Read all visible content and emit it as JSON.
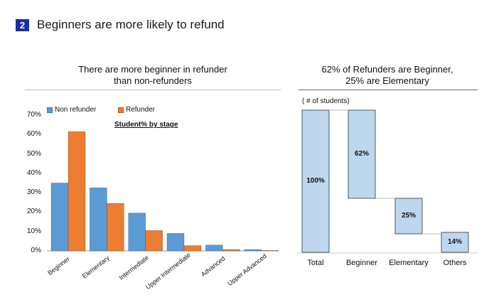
{
  "page": {
    "badge": "2",
    "heading": "Beginners are more likely to refund"
  },
  "colors": {
    "badge": "#1a2f9e",
    "non_refunder": "#5b9bd5",
    "refunder": "#ed7d31",
    "waterfall_fill": "#bdd7ee",
    "waterfall_stroke": "#333333"
  },
  "chart_data": [
    {
      "type": "bar",
      "title": "There are more beginner in refunder than non-refunders",
      "title_lines": [
        "There are more beginner in refunder",
        "than non-refunders"
      ],
      "subtitle": "Student% by stage",
      "categories": [
        "Beginner",
        "Elementary",
        "Intermediate",
        "Upper Intermediate",
        "Advanced",
        "Upper Advanced"
      ],
      "series": [
        {
          "name": "Non refunder",
          "values": [
            35,
            32.5,
            19.5,
            9,
            3,
            0.7
          ]
        },
        {
          "name": "Refunder",
          "values": [
            61.5,
            24.5,
            10.5,
            2.7,
            0.7,
            0.2
          ]
        }
      ],
      "yticks": [
        "0%",
        "10%",
        "20%",
        "30%",
        "40%",
        "50%",
        "60%",
        "70%"
      ],
      "ylim": [
        0,
        70
      ],
      "legend_position": "top-left"
    },
    {
      "type": "waterfall",
      "title": "62% of Refunders are Beginner, 25% are Elementary",
      "title_lines": [
        "62% of Refunders are Beginner,",
        "25% are Elementary"
      ],
      "units_label": "( # of students)",
      "categories": [
        "Total",
        "Beginner",
        "Elementary",
        "Others"
      ],
      "values": [
        100,
        62,
        25,
        14
      ],
      "labels": [
        "100%",
        "62%",
        "25%",
        "14%"
      ]
    }
  ]
}
